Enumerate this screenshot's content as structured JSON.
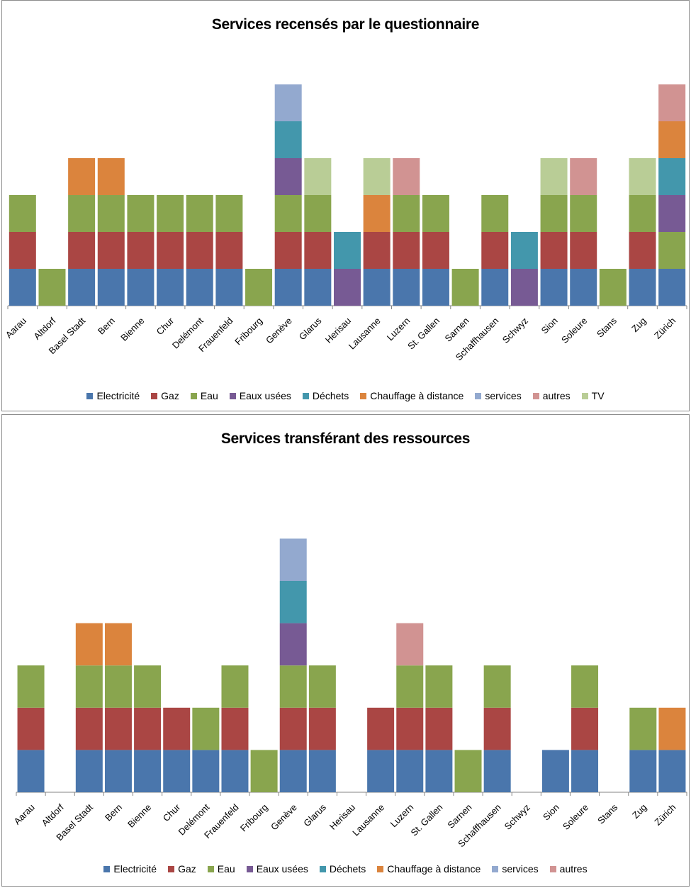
{
  "chart_data": [
    {
      "type": "bar",
      "stacked": true,
      "title": "Services recensés par le questionnaire",
      "xlabel": "",
      "ylabel": "",
      "grid": false,
      "legend_position": "bottom",
      "categories": [
        "Aarau",
        "Altdorf",
        "Basel Stadt",
        "Bern",
        "Bienne",
        "Chur",
        "Delémont",
        "Frauenfeld",
        "Fribourg",
        "Genève",
        "Glarus",
        "Herisau",
        "Lausanne",
        "Luzern",
        "St. Gallen",
        "Sarnen",
        "Schaffhausen",
        "Schwyz",
        "Sion",
        "Soleure",
        "Stans",
        "Zug",
        "Zürich"
      ],
      "series": [
        {
          "name": "Electricité",
          "color": "#4a76ac",
          "values": [
            1,
            0,
            1,
            1,
            1,
            1,
            1,
            1,
            0,
            1,
            1,
            0,
            1,
            1,
            1,
            0,
            1,
            0,
            1,
            1,
            0,
            1,
            1
          ]
        },
        {
          "name": "Gaz",
          "color": "#aa4644",
          "values": [
            1,
            0,
            1,
            1,
            1,
            1,
            1,
            1,
            0,
            1,
            1,
            0,
            1,
            1,
            1,
            0,
            1,
            0,
            1,
            1,
            0,
            1,
            0
          ]
        },
        {
          "name": "Eau",
          "color": "#89a54e",
          "values": [
            1,
            1,
            1,
            1,
            1,
            1,
            1,
            1,
            1,
            1,
            1,
            0,
            0,
            1,
            1,
            1,
            1,
            0,
            1,
            1,
            1,
            1,
            1
          ]
        },
        {
          "name": "Eaux usées",
          "color": "#775a94",
          "values": [
            0,
            0,
            0,
            0,
            0,
            0,
            0,
            0,
            0,
            1,
            0,
            1,
            0,
            0,
            0,
            0,
            0,
            1,
            0,
            0,
            0,
            0,
            1
          ]
        },
        {
          "name": "Déchets",
          "color": "#4397ac",
          "values": [
            0,
            0,
            0,
            0,
            0,
            0,
            0,
            0,
            0,
            1,
            0,
            1,
            0,
            0,
            0,
            0,
            0,
            1,
            0,
            0,
            0,
            0,
            1
          ]
        },
        {
          "name": "Chauffage à distance",
          "color": "#db843d",
          "values": [
            0,
            0,
            1,
            1,
            0,
            0,
            0,
            0,
            0,
            0,
            0,
            0,
            1,
            0,
            0,
            0,
            0,
            0,
            0,
            0,
            0,
            0,
            1
          ]
        },
        {
          "name": "services",
          "color": "#93a9cf",
          "values": [
            0,
            0,
            0,
            0,
            0,
            0,
            0,
            0,
            0,
            1,
            0,
            0,
            0,
            0,
            0,
            0,
            0,
            0,
            0,
            0,
            0,
            0,
            0
          ]
        },
        {
          "name": "autres",
          "color": "#d19392",
          "values": [
            0,
            0,
            0,
            0,
            0,
            0,
            0,
            0,
            0,
            0,
            0,
            0,
            0,
            1,
            0,
            0,
            0,
            0,
            0,
            1,
            0,
            0,
            1
          ]
        },
        {
          "name": "TV",
          "color": "#b9cd96",
          "values": [
            0,
            0,
            0,
            0,
            0,
            0,
            0,
            0,
            0,
            0,
            1,
            0,
            1,
            0,
            0,
            0,
            0,
            0,
            1,
            0,
            0,
            1,
            0
          ]
        }
      ],
      "order_note": "series are stacked bottom-to-top in the listed order, with Electricité, Gaz, Eau in different order only where shown",
      "ylim": [
        0,
        6
      ]
    },
    {
      "type": "bar",
      "stacked": true,
      "title": "Services transférant des ressources",
      "xlabel": "",
      "ylabel": "",
      "grid": false,
      "legend_position": "bottom",
      "categories": [
        "Aarau",
        "Altdorf",
        "Basel Stadt",
        "Bern",
        "Bienne",
        "Chur",
        "Delémont",
        "Frauenfeld",
        "Fribourg",
        "Genève",
        "Glarus",
        "Herisau",
        "Lausanne",
        "Luzern",
        "St. Gallen",
        "Sarnen",
        "Schaffhausen",
        "Schwyz",
        "Sion",
        "Soleure",
        "Stans",
        "Zug",
        "Zürich"
      ],
      "series": [
        {
          "name": "Electricité",
          "color": "#4a76ac",
          "values": [
            1,
            0,
            1,
            1,
            1,
            1,
            1,
            1,
            0,
            1,
            1,
            0,
            1,
            1,
            1,
            0,
            1,
            0,
            1,
            1,
            0,
            1,
            1
          ]
        },
        {
          "name": "Gaz",
          "color": "#aa4644",
          "values": [
            1,
            0,
            1,
            1,
            1,
            1,
            0,
            1,
            0,
            1,
            1,
            0,
            1,
            1,
            1,
            0,
            1,
            0,
            0,
            1,
            0,
            0,
            0
          ]
        },
        {
          "name": "Eau",
          "color": "#89a54e",
          "values": [
            1,
            0,
            1,
            1,
            1,
            0,
            1,
            1,
            1,
            1,
            1,
            0,
            0,
            1,
            1,
            1,
            1,
            0,
            0,
            1,
            0,
            1,
            0
          ]
        },
        {
          "name": "Eaux usées",
          "color": "#775a94",
          "values": [
            0,
            0,
            0,
            0,
            0,
            0,
            0,
            0,
            0,
            1,
            0,
            0,
            0,
            0,
            0,
            0,
            0,
            0,
            0,
            0,
            0,
            0,
            0
          ]
        },
        {
          "name": "Déchets",
          "color": "#4397ac",
          "values": [
            0,
            0,
            0,
            0,
            0,
            0,
            0,
            0,
            0,
            1,
            0,
            0,
            0,
            0,
            0,
            0,
            0,
            0,
            0,
            0,
            0,
            0,
            0
          ]
        },
        {
          "name": "Chauffage à distance",
          "color": "#db843d",
          "values": [
            0,
            0,
            1,
            1,
            0,
            0,
            0,
            0,
            0,
            0,
            0,
            0,
            0,
            0,
            0,
            0,
            0,
            0,
            0,
            0,
            0,
            0,
            1
          ]
        },
        {
          "name": "services",
          "color": "#93a9cf",
          "values": [
            0,
            0,
            0,
            0,
            0,
            0,
            0,
            0,
            0,
            1,
            0,
            0,
            0,
            0,
            0,
            0,
            0,
            0,
            0,
            0,
            0,
            0,
            0
          ]
        },
        {
          "name": "autres",
          "color": "#d19392",
          "values": [
            0,
            0,
            0,
            0,
            0,
            0,
            0,
            0,
            0,
            0,
            0,
            0,
            0,
            1,
            0,
            0,
            0,
            0,
            0,
            0,
            0,
            0,
            0
          ]
        }
      ],
      "ylim": [
        0,
        7
      ]
    }
  ],
  "stacks_top": [
    [
      [
        "Electricité",
        "Gaz",
        "Eau"
      ],
      [
        "Eau"
      ],
      [
        "Electricité",
        "Gaz",
        "Eau",
        "Chauffage à distance"
      ],
      [
        "Electricité",
        "Gaz",
        "Eau",
        "Chauffage à distance"
      ],
      [
        "Electricité",
        "Gaz",
        "Eau"
      ],
      [
        "Electricité",
        "Gaz",
        "Eau"
      ],
      [
        "Electricité",
        "Gaz",
        "Eau"
      ],
      [
        "Electricité",
        "Gaz",
        "Eau"
      ],
      [
        "Eau"
      ],
      [
        "Electricité",
        "Gaz",
        "Eau",
        "Eaux usées",
        "Déchets",
        "services"
      ],
      [
        "Electricité",
        "Gaz",
        "Eau",
        "TV"
      ],
      [
        "Eaux usées",
        "Déchets"
      ],
      [
        "Electricité",
        "Gaz",
        "Chauffage à distance",
        "TV"
      ],
      [
        "Electricité",
        "Gaz",
        "Eau",
        "autres"
      ],
      [
        "Electricité",
        "Gaz",
        "Eau"
      ],
      [
        "Eau"
      ],
      [
        "Electricité",
        "Gaz",
        "Eau"
      ],
      [
        "Eaux usées",
        "Déchets"
      ],
      [
        "Electricité",
        "Gaz",
        "Eau",
        "TV"
      ],
      [
        "Electricité",
        "Gaz",
        "Eau",
        "autres"
      ],
      [
        "Eau"
      ],
      [
        "Electricité",
        "Gaz",
        "Eau",
        "TV"
      ],
      [
        "Electricité",
        "Eau",
        "Eaux usées",
        "Déchets",
        "Chauffage à distance",
        "autres"
      ]
    ],
    [
      [
        "Electricité",
        "Gaz",
        "Eau"
      ],
      [],
      [
        "Electricité",
        "Gaz",
        "Eau",
        "Chauffage à distance"
      ],
      [
        "Electricité",
        "Gaz",
        "Eau",
        "Chauffage à distance"
      ],
      [
        "Electricité",
        "Gaz",
        "Eau"
      ],
      [
        "Electricité",
        "Gaz"
      ],
      [
        "Electricité",
        "Eau"
      ],
      [
        "Electricité",
        "Gaz",
        "Eau"
      ],
      [
        "Eau"
      ],
      [
        "Electricité",
        "Gaz",
        "Eau",
        "Eaux usées",
        "Déchets",
        "services"
      ],
      [
        "Electricité",
        "Gaz",
        "Eau"
      ],
      [],
      [
        "Electricité",
        "Gaz"
      ],
      [
        "Electricité",
        "Gaz",
        "Eau",
        "autres"
      ],
      [
        "Electricité",
        "Gaz",
        "Eau"
      ],
      [
        "Eau"
      ],
      [
        "Electricité",
        "Gaz",
        "Eau"
      ],
      [],
      [
        "Electricité"
      ],
      [
        "Electricité",
        "Gaz",
        "Eau"
      ],
      [],
      [
        "Electricité",
        "Eau"
      ],
      [
        "Electricité",
        "Chauffage à distance"
      ]
    ]
  ],
  "legends": [
    [
      "Electricité",
      "Gaz",
      "Eau",
      "Eaux usées",
      "Déchets",
      "Chauffage à distance",
      "services",
      "autres",
      "TV"
    ],
    [
      "Electricité",
      "Gaz",
      "Eau",
      "Eaux usées",
      "Déchets",
      "Chauffage à distance",
      "services",
      "autres"
    ]
  ],
  "colors": {
    "Electricité": "#4a76ac",
    "Gaz": "#aa4644",
    "Eau": "#89a54e",
    "Eaux usées": "#775a94",
    "Déchets": "#4397ac",
    "Chauffage à distance": "#db843d",
    "services": "#93a9cf",
    "autres": "#d19392",
    "TV": "#b9cd96"
  }
}
